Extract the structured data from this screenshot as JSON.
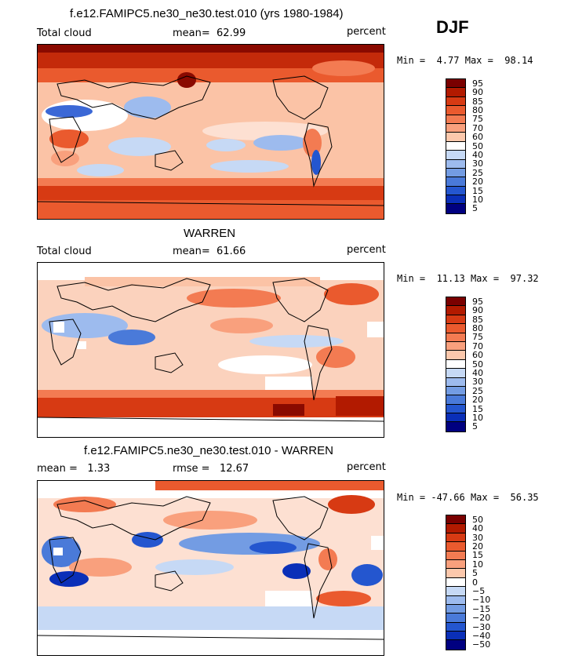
{
  "season": "DJF",
  "panels": [
    {
      "title": "f.e12.FAMIPC5.ne30_ne30.test.010 (yrs 1980-1984)",
      "left_label": "Total cloud",
      "stat1_label": "",
      "stat1_value": "",
      "center_label": "mean=",
      "center_value": "62.99",
      "units": "percent",
      "min_label": "Min =",
      "min_value": "4.77",
      "max_label": "Max =",
      "max_value": "98.14",
      "colorbar_levels": [
        "95",
        "90",
        "85",
        "80",
        "75",
        "70",
        "60",
        "50",
        "40",
        "30",
        "25",
        "20",
        "15",
        "10",
        "5"
      ],
      "colorbar_colors": [
        "#7a0000",
        "#b21a00",
        "#d73a13",
        "#ea5a2e",
        "#f37b52",
        "#f9a07d",
        "#fcc8ac",
        "#ffffff",
        "#c6d9f5",
        "#9dbbee",
        "#739ce3",
        "#4a7ad9",
        "#2456cf",
        "#0a2fb8",
        "#000080"
      ]
    },
    {
      "title": "WARREN",
      "left_label": "Total cloud",
      "stat1_label": "",
      "stat1_value": "",
      "center_label": "mean=",
      "center_value": "61.66",
      "units": "percent",
      "min_label": "Min =",
      "min_value": "11.13",
      "max_label": "Max =",
      "max_value": "97.32",
      "colorbar_levels": [
        "95",
        "90",
        "85",
        "80",
        "75",
        "70",
        "60",
        "50",
        "40",
        "30",
        "25",
        "20",
        "15",
        "10",
        "5"
      ],
      "colorbar_colors": [
        "#7a0000",
        "#b21a00",
        "#d73a13",
        "#ea5a2e",
        "#f37b52",
        "#f9a07d",
        "#fcc8ac",
        "#ffffff",
        "#c6d9f5",
        "#9dbbee",
        "#739ce3",
        "#4a7ad9",
        "#2456cf",
        "#0a2fb8",
        "#000080"
      ]
    },
    {
      "title": "f.e12.FAMIPC5.ne30_ne30.test.010 - WARREN",
      "left_label": "mean =",
      "left_value": "1.33",
      "center_label": "rmse =",
      "center_value": "12.67",
      "units": "percent",
      "min_label": "Min =",
      "min_value": "-47.66",
      "max_label": "Max =",
      "max_value": "56.35",
      "colorbar_levels": [
        "50",
        "40",
        "30",
        "20",
        "15",
        "10",
        "5",
        "0",
        "-5",
        "-10",
        "-15",
        "-20",
        "-30",
        "-40",
        "-50"
      ],
      "colorbar_colors": [
        "#7a0000",
        "#b21a00",
        "#d73a13",
        "#ea5a2e",
        "#f37b52",
        "#f9a07d",
        "#fcc8ac",
        "#ffffff",
        "#c6d9f5",
        "#9dbbee",
        "#739ce3",
        "#4a7ad9",
        "#2456cf",
        "#0a2fb8",
        "#000080"
      ]
    }
  ]
}
